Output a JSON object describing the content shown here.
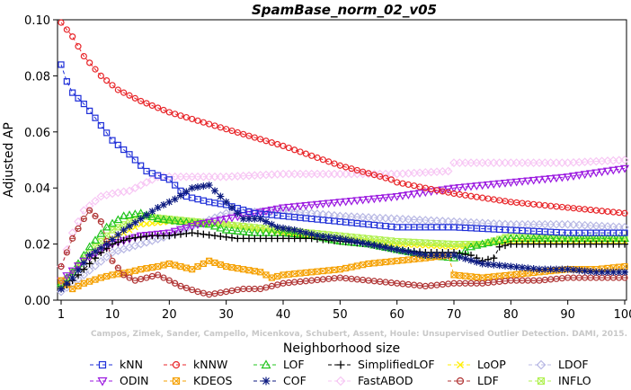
{
  "chart_data": {
    "type": "line",
    "title": "SpamBase_norm_02_v05",
    "xlabel": "Neighborhood size",
    "ylabel": "Adjusted AP",
    "xlim": [
      1,
      100
    ],
    "ylim": [
      0,
      0.1
    ],
    "x_ticks": [
      "1",
      "10",
      "20",
      "30",
      "40",
      "50",
      "60",
      "70",
      "80",
      "90",
      "100"
    ],
    "y_ticks": [
      "0.00",
      "0.02",
      "0.04",
      "0.06",
      "0.08",
      "0.10"
    ],
    "grid": false,
    "legend_placement": "bottom",
    "watermark": "Campos, Zimek, Sander, Campello, Micenkova, Schubert, Assent, Houle: Unsupervised Outlier Detection. DAMI, 2015.",
    "series": [
      {
        "name": "kNN",
        "color": "#1f2fd8",
        "marker": "square",
        "points": [
          [
            1,
            0.084
          ],
          [
            2,
            0.078
          ],
          [
            3,
            0.074
          ],
          [
            5,
            0.07
          ],
          [
            7,
            0.065
          ],
          [
            10,
            0.057
          ],
          [
            13,
            0.052
          ],
          [
            16,
            0.046
          ],
          [
            20,
            0.043
          ],
          [
            23,
            0.037
          ],
          [
            27,
            0.035
          ],
          [
            30,
            0.034
          ],
          [
            35,
            0.031
          ],
          [
            40,
            0.03
          ],
          [
            50,
            0.028
          ],
          [
            60,
            0.026
          ],
          [
            70,
            0.026
          ],
          [
            80,
            0.025
          ],
          [
            90,
            0.024
          ],
          [
            100,
            0.024
          ]
        ]
      },
      {
        "name": "kNNW",
        "color": "#e8262a",
        "marker": "circle",
        "points": [
          [
            1,
            0.099
          ],
          [
            3,
            0.094
          ],
          [
            5,
            0.087
          ],
          [
            8,
            0.08
          ],
          [
            11,
            0.075
          ],
          [
            15,
            0.071
          ],
          [
            20,
            0.067
          ],
          [
            30,
            0.061
          ],
          [
            40,
            0.055
          ],
          [
            50,
            0.048
          ],
          [
            59,
            0.043
          ],
          [
            60,
            0.042
          ],
          [
            65,
            0.04
          ],
          [
            70,
            0.038
          ],
          [
            80,
            0.035
          ],
          [
            90,
            0.033
          ],
          [
            100,
            0.031
          ]
        ]
      },
      {
        "name": "LOF",
        "color": "#22c41e",
        "marker": "triangle-up",
        "points": [
          [
            1,
            0.006
          ],
          [
            3,
            0.01
          ],
          [
            6,
            0.019
          ],
          [
            9,
            0.026
          ],
          [
            12,
            0.03
          ],
          [
            15,
            0.031
          ],
          [
            18,
            0.029
          ],
          [
            22,
            0.028
          ],
          [
            27,
            0.027
          ],
          [
            30,
            0.025
          ],
          [
            35,
            0.024
          ],
          [
            40,
            0.024
          ],
          [
            45,
            0.023
          ],
          [
            50,
            0.021
          ],
          [
            55,
            0.02
          ],
          [
            60,
            0.018
          ],
          [
            65,
            0.016
          ],
          [
            70,
            0.015
          ],
          [
            73,
            0.019
          ],
          [
            75,
            0.02
          ],
          [
            80,
            0.022
          ],
          [
            85,
            0.022
          ],
          [
            90,
            0.022
          ],
          [
            95,
            0.022
          ],
          [
            100,
            0.022
          ]
        ]
      },
      {
        "name": "SimplifiedLOF",
        "color": "#000000",
        "marker": "plus",
        "points": [
          [
            1,
            0.004
          ],
          [
            3,
            0.007
          ],
          [
            5,
            0.011
          ],
          [
            8,
            0.017
          ],
          [
            10,
            0.02
          ],
          [
            13,
            0.022
          ],
          [
            17,
            0.023
          ],
          [
            20,
            0.023
          ],
          [
            24,
            0.024
          ],
          [
            28,
            0.023
          ],
          [
            32,
            0.022
          ],
          [
            36,
            0.022
          ],
          [
            40,
            0.022
          ],
          [
            45,
            0.022
          ],
          [
            50,
            0.021
          ],
          [
            55,
            0.02
          ],
          [
            60,
            0.018
          ],
          [
            65,
            0.017
          ],
          [
            70,
            0.017
          ],
          [
            73,
            0.016
          ],
          [
            75,
            0.014
          ],
          [
            77,
            0.015
          ],
          [
            78,
            0.019
          ],
          [
            80,
            0.02
          ],
          [
            85,
            0.02
          ],
          [
            90,
            0.02
          ],
          [
            95,
            0.02
          ],
          [
            100,
            0.02
          ]
        ]
      },
      {
        "name": "LoOP",
        "color": "#ffee00",
        "marker": "x",
        "points": [
          [
            1,
            0.005
          ],
          [
            5,
            0.014
          ],
          [
            10,
            0.022
          ],
          [
            15,
            0.027
          ],
          [
            20,
            0.028
          ],
          [
            30,
            0.027
          ],
          [
            40,
            0.024
          ],
          [
            50,
            0.022
          ],
          [
            60,
            0.02
          ],
          [
            70,
            0.019
          ],
          [
            80,
            0.021
          ],
          [
            90,
            0.021
          ],
          [
            100,
            0.021
          ]
        ]
      },
      {
        "name": "LDOF",
        "color": "#b8b8e4",
        "marker": "diamond",
        "points": [
          [
            1,
            0.003
          ],
          [
            5,
            0.009
          ],
          [
            10,
            0.017
          ],
          [
            15,
            0.02
          ],
          [
            20,
            0.023
          ],
          [
            25,
            0.027
          ],
          [
            30,
            0.031
          ],
          [
            40,
            0.032
          ],
          [
            50,
            0.03
          ],
          [
            60,
            0.029
          ],
          [
            70,
            0.028
          ],
          [
            80,
            0.027
          ],
          [
            90,
            0.027
          ],
          [
            100,
            0.026
          ]
        ]
      },
      {
        "name": "ODIN",
        "color": "#9b19e0",
        "marker": "triangle-down",
        "points": [
          [
            1,
            0.007
          ],
          [
            5,
            0.014
          ],
          [
            10,
            0.02
          ],
          [
            15,
            0.023
          ],
          [
            20,
            0.024
          ],
          [
            25,
            0.027
          ],
          [
            30,
            0.029
          ],
          [
            35,
            0.031
          ],
          [
            40,
            0.033
          ],
          [
            50,
            0.035
          ],
          [
            60,
            0.037
          ],
          [
            70,
            0.04
          ],
          [
            80,
            0.042
          ],
          [
            90,
            0.044
          ],
          [
            100,
            0.047
          ]
        ]
      },
      {
        "name": "KDEOS",
        "color": "#f5a000",
        "marker": "square-x",
        "points": [
          [
            1,
            0.007
          ],
          [
            3,
            0.004
          ],
          [
            5,
            0.006
          ],
          [
            8,
            0.008
          ],
          [
            10,
            0.009
          ],
          [
            13,
            0.01
          ],
          [
            15,
            0.011
          ],
          [
            18,
            0.012
          ],
          [
            20,
            0.013
          ],
          [
            24,
            0.011
          ],
          [
            27,
            0.014
          ],
          [
            30,
            0.012
          ],
          [
            33,
            0.011
          ],
          [
            36,
            0.01
          ],
          [
            38,
            0.008
          ],
          [
            40,
            0.009
          ],
          [
            45,
            0.01
          ],
          [
            50,
            0.011
          ],
          [
            55,
            0.013
          ],
          [
            60,
            0.014
          ],
          [
            65,
            0.015
          ],
          [
            69,
            0.016
          ],
          [
            70,
            0.009
          ],
          [
            75,
            0.008
          ],
          [
            80,
            0.009
          ],
          [
            85,
            0.01
          ],
          [
            90,
            0.011
          ],
          [
            95,
            0.011
          ],
          [
            100,
            0.012
          ]
        ]
      },
      {
        "name": "COF",
        "color": "#0c1a80",
        "marker": "asterisk",
        "points": [
          [
            1,
            0.004
          ],
          [
            3,
            0.008
          ],
          [
            6,
            0.016
          ],
          [
            9,
            0.02
          ],
          [
            12,
            0.025
          ],
          [
            15,
            0.029
          ],
          [
            18,
            0.033
          ],
          [
            21,
            0.036
          ],
          [
            24,
            0.04
          ],
          [
            27,
            0.041
          ],
          [
            30,
            0.035
          ],
          [
            33,
            0.029
          ],
          [
            36,
            0.029
          ],
          [
            39,
            0.026
          ],
          [
            42,
            0.025
          ],
          [
            46,
            0.023
          ],
          [
            50,
            0.022
          ],
          [
            55,
            0.02
          ],
          [
            60,
            0.018
          ],
          [
            65,
            0.016
          ],
          [
            70,
            0.016
          ],
          [
            75,
            0.013
          ],
          [
            80,
            0.012
          ],
          [
            85,
            0.011
          ],
          [
            90,
            0.011
          ],
          [
            95,
            0.01
          ],
          [
            100,
            0.01
          ]
        ]
      },
      {
        "name": "FastABOD",
        "color": "#f7c6f4",
        "marker": "diamond",
        "points": [
          [
            1,
            0.012
          ],
          [
            3,
            0.024
          ],
          [
            5,
            0.032
          ],
          [
            8,
            0.037
          ],
          [
            10,
            0.038
          ],
          [
            13,
            0.039
          ],
          [
            16,
            0.042
          ],
          [
            18,
            0.044
          ],
          [
            22,
            0.044
          ],
          [
            30,
            0.044
          ],
          [
            40,
            0.045
          ],
          [
            50,
            0.045
          ],
          [
            60,
            0.045
          ],
          [
            69,
            0.046
          ],
          [
            70,
            0.049
          ],
          [
            80,
            0.049
          ],
          [
            90,
            0.049
          ],
          [
            100,
            0.05
          ]
        ]
      },
      {
        "name": "LDF",
        "color": "#b03535",
        "marker": "circle-bar",
        "points": [
          [
            1,
            0.012
          ],
          [
            3,
            0.022
          ],
          [
            5,
            0.029
          ],
          [
            6,
            0.032
          ],
          [
            8,
            0.028
          ],
          [
            10,
            0.014
          ],
          [
            12,
            0.009
          ],
          [
            14,
            0.007
          ],
          [
            16,
            0.008
          ],
          [
            18,
            0.009
          ],
          [
            20,
            0.007
          ],
          [
            22,
            0.005
          ],
          [
            25,
            0.003
          ],
          [
            27,
            0.002
          ],
          [
            30,
            0.003
          ],
          [
            33,
            0.004
          ],
          [
            36,
            0.004
          ],
          [
            40,
            0.006
          ],
          [
            45,
            0.007
          ],
          [
            50,
            0.008
          ],
          [
            55,
            0.007
          ],
          [
            60,
            0.006
          ],
          [
            65,
            0.005
          ],
          [
            70,
            0.006
          ],
          [
            75,
            0.006
          ],
          [
            80,
            0.007
          ],
          [
            85,
            0.007
          ],
          [
            90,
            0.008
          ],
          [
            95,
            0.008
          ],
          [
            100,
            0.008
          ]
        ]
      },
      {
        "name": "INFLO",
        "color": "#b0f050",
        "marker": "square-x",
        "points": [
          [
            1,
            0.005
          ],
          [
            5,
            0.015
          ],
          [
            10,
            0.025
          ],
          [
            15,
            0.03
          ],
          [
            20,
            0.029
          ],
          [
            30,
            0.027
          ],
          [
            40,
            0.025
          ],
          [
            50,
            0.023
          ],
          [
            60,
            0.021
          ],
          [
            70,
            0.02
          ],
          [
            75,
            0.02
          ],
          [
            80,
            0.023
          ],
          [
            90,
            0.022
          ],
          [
            100,
            0.022
          ]
        ]
      }
    ],
    "legend_rows": [
      [
        "kNN",
        "kNNW",
        "LOF",
        "SimplifiedLOF",
        "LoOP",
        "LDOF"
      ],
      [
        "ODIN",
        "KDEOS",
        "COF",
        "FastABOD",
        "LDF",
        "INFLO"
      ]
    ]
  }
}
